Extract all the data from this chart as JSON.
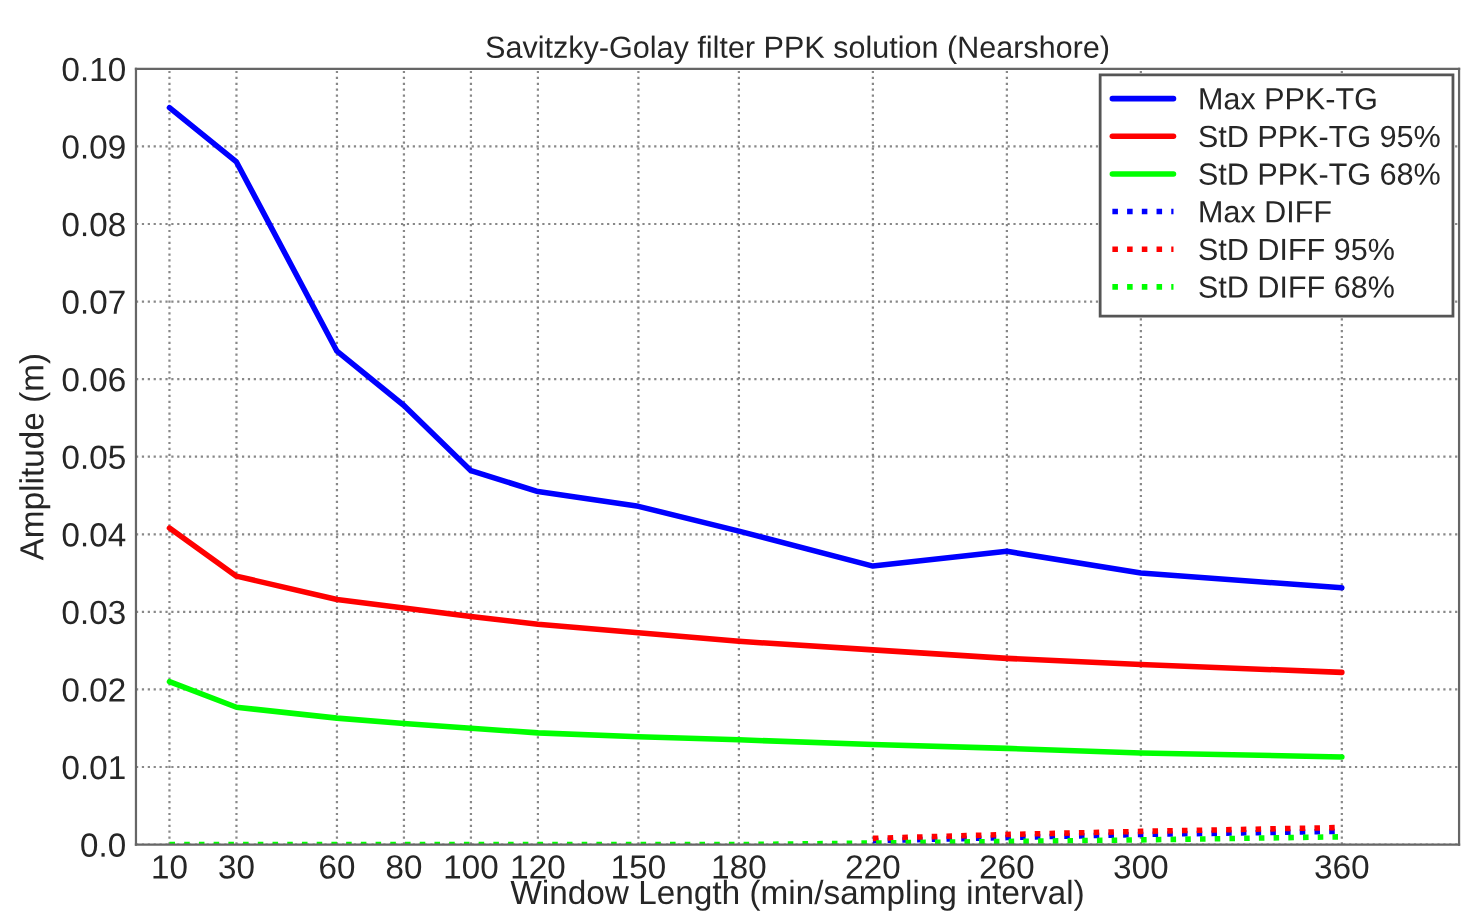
{
  "chart_data": {
    "type": "line",
    "title": "Savitzky-Golay filter PPK solution (Nearshore)",
    "xlabel": "Window Length (min/sampling interval)",
    "ylabel": "Amplitude (m)",
    "x": [
      10,
      30,
      60,
      80,
      100,
      120,
      150,
      180,
      220,
      260,
      300,
      360
    ],
    "series": [
      {
        "name": "Max PPK-TG",
        "color": "#0000ff",
        "line_style": "solid",
        "values": [
          0.095,
          0.088,
          0.0636,
          0.0566,
          0.0482,
          0.0455,
          0.0436,
          0.0404,
          0.0359,
          0.0378,
          0.035,
          0.0331
        ]
      },
      {
        "name": "StD PPK-TG 95%",
        "color": "#ff0000",
        "line_style": "solid",
        "values": [
          0.0408,
          0.0346,
          0.0316,
          0.0305,
          0.0294,
          0.0284,
          0.0273,
          0.0262,
          0.0251,
          0.024,
          0.0232,
          0.0222
        ]
      },
      {
        "name": "StD PPK-TG 68%",
        "color": "#00ff00",
        "line_style": "solid",
        "values": [
          0.021,
          0.0177,
          0.0163,
          0.0156,
          0.015,
          0.0144,
          0.0139,
          0.0135,
          0.0129,
          0.0124,
          0.0118,
          0.0113
        ]
      },
      {
        "name": "Max DIFF",
        "color": "#0000ff",
        "line_style": "dotted",
        "values": [
          null,
          null,
          null,
          null,
          null,
          null,
          null,
          null,
          0.0005,
          0.0009,
          0.0013,
          0.0017
        ]
      },
      {
        "name": "StD DIFF 95%",
        "color": "#ff0000",
        "line_style": "dotted",
        "values": [
          null,
          null,
          null,
          null,
          null,
          null,
          null,
          null,
          0.0008,
          0.0013,
          0.0017,
          0.0022
        ]
      },
      {
        "name": "StD DIFF 68%",
        "color": "#00ff00",
        "line_style": "dotted",
        "values": [
          0,
          0,
          0,
          0,
          0,
          0,
          0,
          0,
          0.0002,
          0.0004,
          0.0006,
          0.001
        ]
      }
    ],
    "xlim": [
      0,
      395
    ],
    "xticks": [
      10,
      30,
      60,
      80,
      100,
      120,
      150,
      180,
      220,
      260,
      300,
      360
    ],
    "ylim": [
      0,
      0.1
    ],
    "yticks": [
      {
        "value": 0,
        "label": "0.0"
      },
      0.01,
      0.02,
      0.03,
      0.04,
      0.05,
      0.06,
      0.07,
      0.08,
      0.09,
      {
        "value": 0.1,
        "label": "0.10"
      }
    ],
    "grid": true,
    "legend": "top right",
    "marker": "none"
  }
}
